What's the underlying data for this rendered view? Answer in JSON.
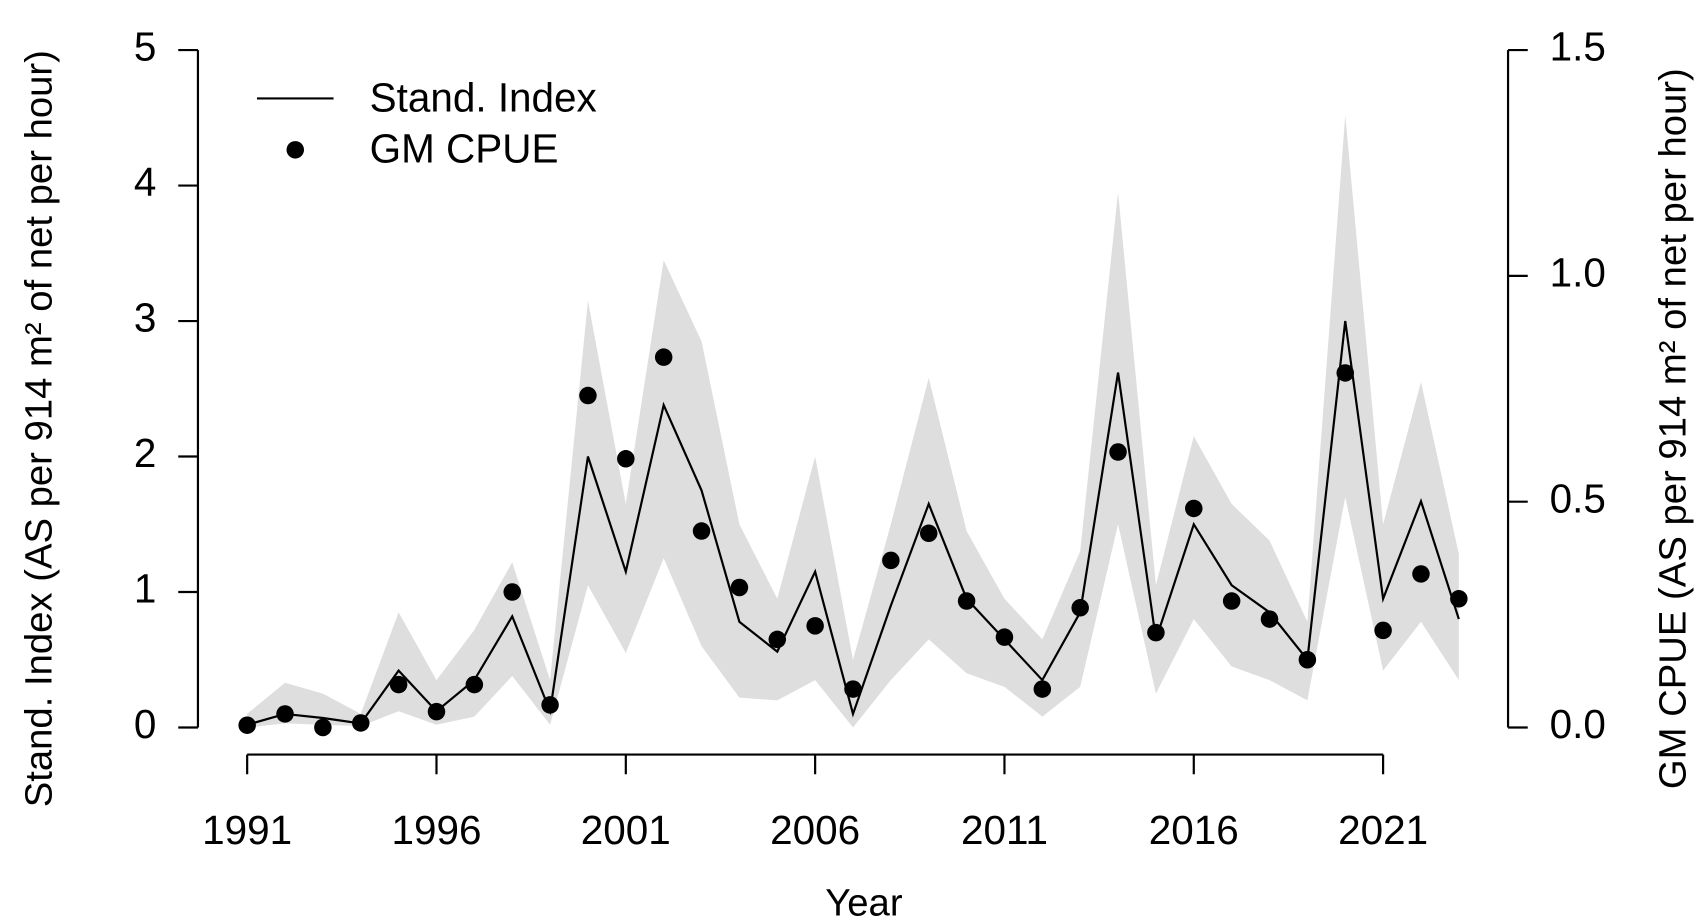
{
  "chart_data": {
    "type": "line",
    "x_label": "Year",
    "y_label": "Stand. Index (AS per 914 m² of net per hour)",
    "y2_label": "GM CPUE (AS per 914 m² of net per hour)",
    "x": [
      1991,
      1992,
      1993,
      1994,
      1995,
      1996,
      1997,
      1998,
      1999,
      2000,
      2001,
      2002,
      2003,
      2004,
      2005,
      2006,
      2007,
      2008,
      2009,
      2010,
      2011,
      2012,
      2013,
      2014,
      2015,
      2016,
      2017,
      2018,
      2019,
      2020,
      2021,
      2022,
      2023
    ],
    "xlim": [
      1989.7,
      2024.3
    ],
    "xticks": [
      1991,
      1996,
      2001,
      2006,
      2011,
      2016,
      2021
    ],
    "ylim": [
      -0.2,
      5.2
    ],
    "yticks": [
      0,
      1,
      2,
      3,
      4,
      5
    ],
    "y2lim": [
      -0.06,
      1.56
    ],
    "y2ticks": [
      {
        "value": 0,
        "label": "0.0"
      },
      0.5,
      {
        "value": 1,
        "label": "1.0"
      },
      1.5
    ],
    "legend": "top-left",
    "series": [
      {
        "name": "Stand. Index",
        "color": "#000000",
        "band_color": "#dedede",
        "values": [
          0.02,
          0.1,
          0.07,
          0.03,
          0.42,
          0.12,
          0.35,
          0.82,
          0.12,
          2.0,
          1.15,
          2.38,
          1.75,
          0.78,
          0.56,
          1.15,
          0.1,
          0.9,
          1.65,
          0.95,
          0.65,
          0.35,
          0.85,
          2.62,
          0.65,
          1.5,
          1.05,
          0.85,
          0.5,
          3.0,
          0.95,
          1.67,
          0.8
        ],
        "lower": [
          0,
          0.03,
          0.02,
          0.01,
          0.12,
          0.02,
          0.08,
          0.38,
          0.02,
          1.05,
          0.55,
          1.25,
          0.6,
          0.22,
          0.2,
          0.35,
          0,
          0.35,
          0.65,
          0.4,
          0.3,
          0.08,
          0.3,
          1.5,
          0.25,
          0.8,
          0.45,
          0.35,
          0.2,
          1.7,
          0.42,
          0.78,
          0.35
        ],
        "upper": [
          0.1,
          0.33,
          0.25,
          0.1,
          0.85,
          0.35,
          0.72,
          1.22,
          0.35,
          3.15,
          1.65,
          3.45,
          2.85,
          1.5,
          0.95,
          2.0,
          0.5,
          1.5,
          2.58,
          1.45,
          0.95,
          0.65,
          1.3,
          3.95,
          1.05,
          2.15,
          1.65,
          1.38,
          0.78,
          4.52,
          1.5,
          2.55,
          1.28
        ]
      },
      {
        "name": "GM CPUE",
        "color": "#000000",
        "axis": "y2",
        "marker": "circle",
        "values": [
          0.005,
          0.03,
          0,
          0.01,
          0.095,
          0.035,
          0.095,
          0.3,
          0.05,
          0.735,
          0.595,
          0.82,
          0.435,
          0.31,
          0.195,
          0.225,
          0.085,
          0.37,
          0.43,
          0.28,
          0.2,
          0.085,
          0.265,
          0.61,
          0.21,
          0.485,
          0.28,
          0.24,
          0.15,
          0.785,
          0.215,
          0.34,
          0.285
        ]
      }
    ]
  }
}
